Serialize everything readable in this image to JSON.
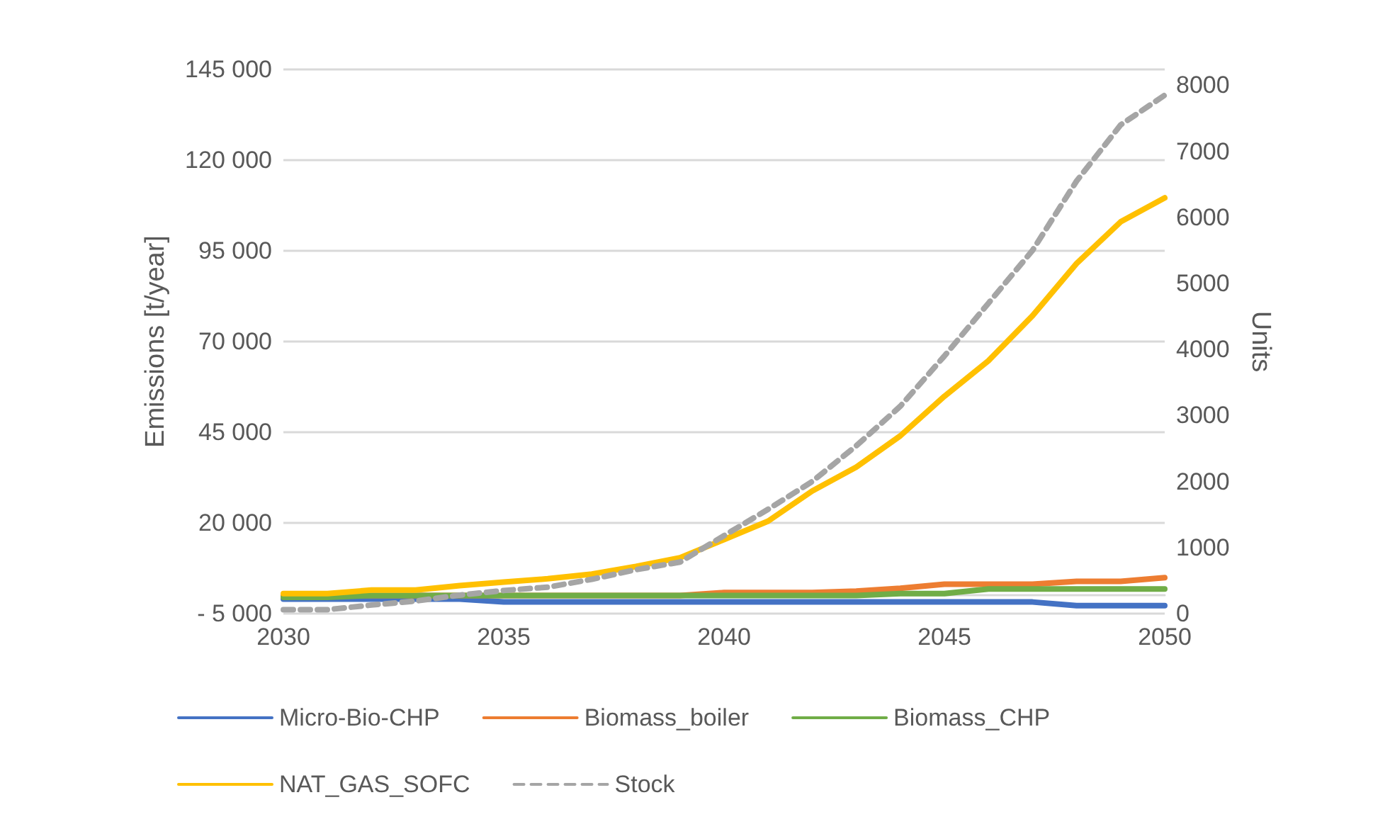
{
  "chart_data": {
    "type": "line",
    "xlabel": null,
    "ylabel": "Emissions [t/year]",
    "y2label": "Units",
    "x": [
      2030,
      2031,
      2032,
      2033,
      2034,
      2035,
      2036,
      2037,
      2038,
      2039,
      2040,
      2041,
      2042,
      2043,
      2044,
      2045,
      2046,
      2047,
      2048,
      2049,
      2050
    ],
    "xlim": [
      2030,
      2050
    ],
    "xticks": [
      2030,
      2035,
      2040,
      2045,
      2050
    ],
    "ylim": [
      -5000,
      145000
    ],
    "yticks": [
      {
        "value": -5000,
        "label": "- 5 000"
      },
      {
        "value": 20000,
        "label": "20 000"
      },
      {
        "value": 45000,
        "label": "45 000"
      },
      {
        "value": 70000,
        "label": "70 000"
      },
      {
        "value": 95000,
        "label": "95 000"
      },
      {
        "value": 120000,
        "label": "120 000"
      },
      {
        "value": 145000,
        "label": "145 000"
      }
    ],
    "y2lim": [
      0,
      8240
    ],
    "y2ticks": [
      0,
      1000,
      2000,
      3000,
      4000,
      5000,
      6000,
      7000,
      8000
    ],
    "grid": "y",
    "legend": "bottom",
    "marker": "none",
    "series": [
      {
        "name": "Micro-Bio-CHP",
        "color": "#4472c4",
        "values": [
          -1000,
          -1000,
          -1000,
          -1000,
          -1000,
          -1800,
          -1800,
          -1800,
          -1800,
          -1800,
          -1800,
          -1800,
          -1800,
          -1800,
          -1800,
          -1800,
          -1800,
          -1800,
          -2800,
          -2800,
          -2800
        ]
      },
      {
        "name": "Biomass_boiler",
        "color": "#ed7d31",
        "values": [
          0,
          0,
          0,
          0,
          0,
          0,
          0,
          0,
          0,
          0,
          800,
          800,
          800,
          1200,
          2000,
          3100,
          3100,
          3100,
          3900,
          3900,
          4900
        ]
      },
      {
        "name": "Biomass_CHP",
        "color": "#70ad47",
        "values": [
          -500,
          -500,
          0,
          0,
          0,
          0,
          0,
          0,
          0,
          0,
          0,
          0,
          0,
          0,
          500,
          500,
          1800,
          1800,
          1800,
          1800,
          1800
        ]
      },
      {
        "name": "NAT_GAS_SOFC",
        "color": "#ffc000",
        "values": [
          500,
          500,
          1500,
          1500,
          2700,
          3700,
          4600,
          5900,
          8000,
          10400,
          15400,
          20500,
          28800,
          35400,
          44000,
          54900,
          64700,
          77100,
          91500,
          103000,
          109600
        ]
      },
      {
        "name": "Stock",
        "color": "#a5a5a5",
        "axis": "y2",
        "line_style": "dashed",
        "values": [
          60,
          60,
          130,
          190,
          280,
          350,
          400,
          520,
          665,
          780,
          1180,
          1580,
          2000,
          2540,
          3140,
          3900,
          4700,
          5500,
          6550,
          7400,
          7850
        ]
      }
    ]
  }
}
